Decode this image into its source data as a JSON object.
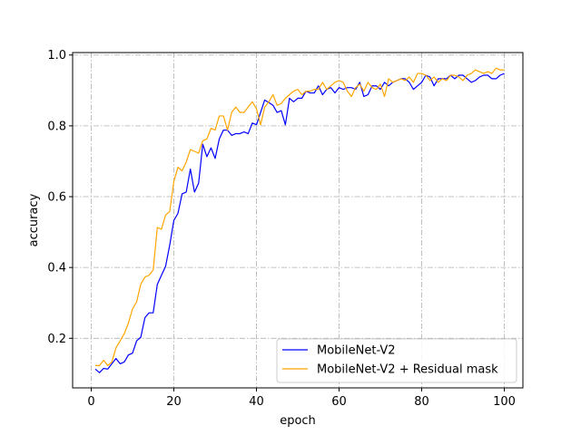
{
  "chart_data": {
    "type": "line",
    "title": "",
    "xlabel": "epoch",
    "ylabel": "accuracy",
    "xlim": [
      -4.5,
      104.5
    ],
    "ylim": [
      0.06,
      1.007
    ],
    "xticks": [
      0,
      20,
      40,
      60,
      80,
      100
    ],
    "xtick_labels": [
      "0",
      "20",
      "40",
      "60",
      "80",
      "100"
    ],
    "yticks": [
      0.2,
      0.4,
      0.6,
      0.8,
      1.0
    ],
    "ytick_labels": [
      "0.2",
      "0.4",
      "0.6",
      "0.8",
      "1.0"
    ],
    "grid": true,
    "legend_position": "lower-right",
    "series": [
      {
        "name": "MobileNet-V2",
        "color": "#0000ff",
        "x": [
          1,
          2,
          3,
          4,
          5,
          6,
          7,
          8,
          9,
          10,
          11,
          12,
          13,
          14,
          15,
          16,
          17,
          18,
          19,
          20,
          21,
          22,
          23,
          24,
          25,
          26,
          27,
          28,
          29,
          30,
          31,
          32,
          33,
          34,
          35,
          36,
          37,
          38,
          39,
          40,
          41,
          42,
          43,
          44,
          45,
          46,
          47,
          48,
          49,
          50,
          51,
          52,
          53,
          54,
          55,
          56,
          57,
          58,
          59,
          60,
          61,
          62,
          63,
          64,
          65,
          66,
          67,
          68,
          69,
          70,
          71,
          72,
          73,
          74,
          75,
          76,
          77,
          78,
          79,
          80,
          81,
          82,
          83,
          84,
          85,
          86,
          87,
          88,
          89,
          90,
          91,
          92,
          93,
          94,
          95,
          96,
          97,
          98,
          99,
          100
        ],
        "values": [
          0.113,
          0.103,
          0.115,
          0.113,
          0.128,
          0.143,
          0.128,
          0.133,
          0.153,
          0.158,
          0.193,
          0.203,
          0.258,
          0.272,
          0.272,
          0.352,
          0.378,
          0.403,
          0.463,
          0.533,
          0.553,
          0.608,
          0.613,
          0.678,
          0.613,
          0.638,
          0.748,
          0.713,
          0.738,
          0.708,
          0.763,
          0.788,
          0.788,
          0.773,
          0.778,
          0.778,
          0.783,
          0.778,
          0.808,
          0.803,
          0.838,
          0.873,
          0.866,
          0.858,
          0.838,
          0.843,
          0.803,
          0.878,
          0.868,
          0.878,
          0.878,
          0.898,
          0.893,
          0.893,
          0.913,
          0.888,
          0.903,
          0.908,
          0.893,
          0.908,
          0.903,
          0.908,
          0.908,
          0.903,
          0.923,
          0.883,
          0.888,
          0.913,
          0.913,
          0.903,
          0.923,
          0.913,
          0.923,
          0.928,
          0.933,
          0.933,
          0.923,
          0.903,
          0.913,
          0.923,
          0.943,
          0.938,
          0.913,
          0.933,
          0.933,
          0.933,
          0.943,
          0.933,
          0.943,
          0.943,
          0.933,
          0.923,
          0.928,
          0.938,
          0.943,
          0.943,
          0.933,
          0.933,
          0.943,
          0.948
        ]
      },
      {
        "name": "MobileNet-V2 + Residual mask",
        "color": "#ffa500",
        "x": [
          1,
          2,
          3,
          4,
          5,
          6,
          7,
          8,
          9,
          10,
          11,
          12,
          13,
          14,
          15,
          16,
          17,
          18,
          19,
          20,
          21,
          22,
          23,
          24,
          25,
          26,
          27,
          28,
          29,
          30,
          31,
          32,
          33,
          34,
          35,
          36,
          37,
          38,
          39,
          40,
          41,
          42,
          43,
          44,
          45,
          46,
          47,
          48,
          49,
          50,
          51,
          52,
          53,
          54,
          55,
          56,
          57,
          58,
          59,
          60,
          61,
          62,
          63,
          64,
          65,
          66,
          67,
          68,
          69,
          70,
          71,
          72,
          73,
          74,
          75,
          76,
          77,
          78,
          79,
          80,
          81,
          82,
          83,
          84,
          85,
          86,
          87,
          88,
          89,
          90,
          91,
          92,
          93,
          94,
          95,
          96,
          97,
          98,
          99,
          100
        ],
        "values": [
          0.123,
          0.123,
          0.138,
          0.123,
          0.133,
          0.173,
          0.193,
          0.213,
          0.243,
          0.283,
          0.303,
          0.353,
          0.373,
          0.378,
          0.393,
          0.513,
          0.508,
          0.548,
          0.558,
          0.643,
          0.683,
          0.673,
          0.698,
          0.733,
          0.728,
          0.723,
          0.758,
          0.763,
          0.793,
          0.788,
          0.828,
          0.828,
          0.788,
          0.838,
          0.853,
          0.838,
          0.838,
          0.853,
          0.868,
          0.848,
          0.803,
          0.853,
          0.868,
          0.888,
          0.858,
          0.863,
          0.878,
          0.888,
          0.898,
          0.903,
          0.888,
          0.898,
          0.898,
          0.903,
          0.903,
          0.923,
          0.903,
          0.913,
          0.923,
          0.928,
          0.923,
          0.898,
          0.883,
          0.908,
          0.918,
          0.898,
          0.923,
          0.908,
          0.903,
          0.918,
          0.883,
          0.933,
          0.923,
          0.928,
          0.933,
          0.928,
          0.938,
          0.923,
          0.948,
          0.948,
          0.943,
          0.928,
          0.938,
          0.923,
          0.933,
          0.928,
          0.943,
          0.943,
          0.938,
          0.928,
          0.943,
          0.948,
          0.958,
          0.953,
          0.948,
          0.953,
          0.948,
          0.963,
          0.958,
          0.958
        ]
      }
    ]
  }
}
